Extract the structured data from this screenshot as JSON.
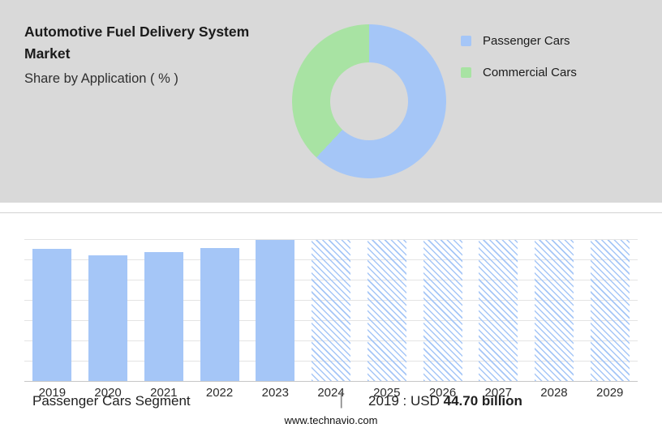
{
  "header": {
    "title": "Automotive Fuel Delivery System Market",
    "subtitle": "Share by Application ( % )"
  },
  "chart_data": [
    {
      "type": "pie",
      "donut": true,
      "title": "Share by Application ( % )",
      "labels": [
        "Passenger Cars",
        "Commercial Cars"
      ],
      "values": [
        62,
        38
      ],
      "colors": [
        "#a5c6f7",
        "#a8e3a3"
      ],
      "legend_position": "right",
      "start_angle": "top",
      "direction": "clockwise"
    },
    {
      "type": "bar",
      "categories": [
        "2019",
        "2020",
        "2021",
        "2022",
        "2023",
        "2024",
        "2025",
        "2026",
        "2027",
        "2028",
        "2029"
      ],
      "values": [
        44.7,
        42.4,
        43.5,
        44.9,
        47.6,
        47.6,
        47.6,
        47.6,
        47.6,
        47.6,
        47.6
      ],
      "forecast": [
        false,
        false,
        false,
        false,
        false,
        true,
        true,
        true,
        true,
        true,
        true
      ],
      "unit": "USD billion",
      "ylim": [
        0,
        48
      ],
      "grid": true,
      "bar_color": "#a5c6f7",
      "forecast_style": "diagonal-hatch",
      "annotation": "2019 : USD 44.70 billion"
    }
  ],
  "caption": {
    "segment_label": "Passenger Cars Segment",
    "separator": "|",
    "value_prefix": "2019 : USD ",
    "value_bold": "44.70 billion"
  },
  "footer": {
    "website": "www.technavio.com"
  }
}
